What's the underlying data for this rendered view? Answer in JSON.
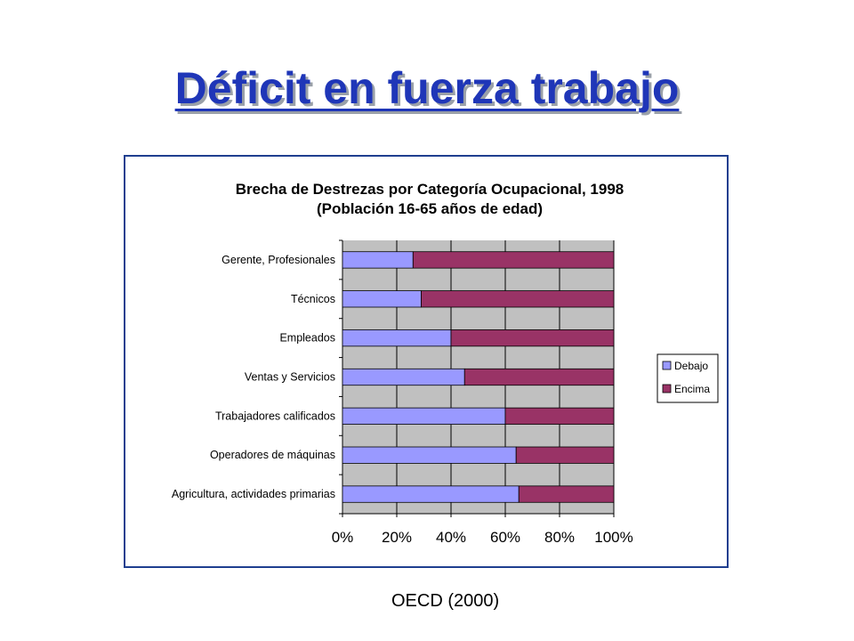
{
  "slide": {
    "title": "Déficit en fuerza trabajo",
    "source": "OECD (2000)"
  },
  "chart_data": {
    "type": "bar",
    "orientation": "horizontal",
    "stacked": "percent",
    "title": "Brecha de Destrezas por Categoría Ocupacional, 1998",
    "subtitle": "(Población 16-65 años de edad)",
    "categories": [
      "Gerente, Profesionales",
      "Técnicos",
      "Empleados",
      "Ventas y Servicios",
      "Trabajadores calificados",
      "Operadores de máquinas",
      "Agricultura, actividades primarias"
    ],
    "series": [
      {
        "name": "Debajo",
        "color": "#9999ff",
        "values": [
          26,
          29,
          40,
          45,
          60,
          64,
          65
        ]
      },
      {
        "name": "Encima",
        "color": "#993366",
        "values": [
          74,
          71,
          60,
          55,
          40,
          36,
          35
        ]
      }
    ],
    "xlim": [
      0,
      100
    ],
    "xticks": [
      "0%",
      "20%",
      "40%",
      "60%",
      "80%",
      "100%"
    ],
    "plot_background": "#c0c0c0",
    "grid": true,
    "legend": "right"
  }
}
